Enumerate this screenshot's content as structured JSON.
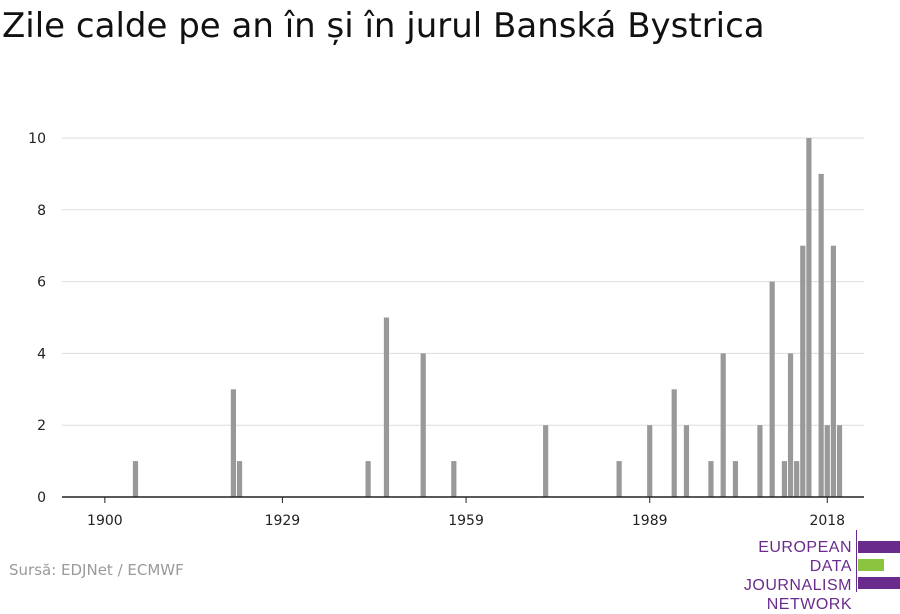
{
  "chart_data": {
    "type": "bar",
    "title": "Zile calde pe an în și în jurul Banská Bystrica",
    "xlabel": "",
    "ylabel": "",
    "xlim": [
      1893,
      2024
    ],
    "ylim": [
      0,
      10
    ],
    "x_ticks": [
      "1900",
      "1929",
      "1959",
      "1989",
      "2018"
    ],
    "y_ticks": [
      0,
      2,
      4,
      6,
      8,
      10
    ],
    "grid": true,
    "bar_color": "#999999",
    "points": [
      {
        "year": 1905,
        "value": 1
      },
      {
        "year": 1921,
        "value": 3
      },
      {
        "year": 1922,
        "value": 1
      },
      {
        "year": 1943,
        "value": 1
      },
      {
        "year": 1946,
        "value": 5
      },
      {
        "year": 1952,
        "value": 4
      },
      {
        "year": 1957,
        "value": 1
      },
      {
        "year": 1972,
        "value": 2
      },
      {
        "year": 1984,
        "value": 1
      },
      {
        "year": 1989,
        "value": 2
      },
      {
        "year": 1993,
        "value": 3
      },
      {
        "year": 1995,
        "value": 2
      },
      {
        "year": 1999,
        "value": 1
      },
      {
        "year": 2001,
        "value": 4
      },
      {
        "year": 2003,
        "value": 1
      },
      {
        "year": 2007,
        "value": 2
      },
      {
        "year": 2009,
        "value": 6
      },
      {
        "year": 2011,
        "value": 1
      },
      {
        "year": 2012,
        "value": 4
      },
      {
        "year": 2013,
        "value": 1
      },
      {
        "year": 2014,
        "value": 7
      },
      {
        "year": 2015,
        "value": 10
      },
      {
        "year": 2017,
        "value": 9
      },
      {
        "year": 2018,
        "value": 2
      },
      {
        "year": 2019,
        "value": 7
      },
      {
        "year": 2020,
        "value": 2
      }
    ]
  },
  "source": "Sursă: EDJNet / ECMWF",
  "logo": {
    "line1": "EUROPEAN",
    "line2": "DATA JOURNALISM",
    "line3": "NETWORK",
    "colors": {
      "purple": "#6a2c8c",
      "green": "#8bc53f"
    }
  }
}
